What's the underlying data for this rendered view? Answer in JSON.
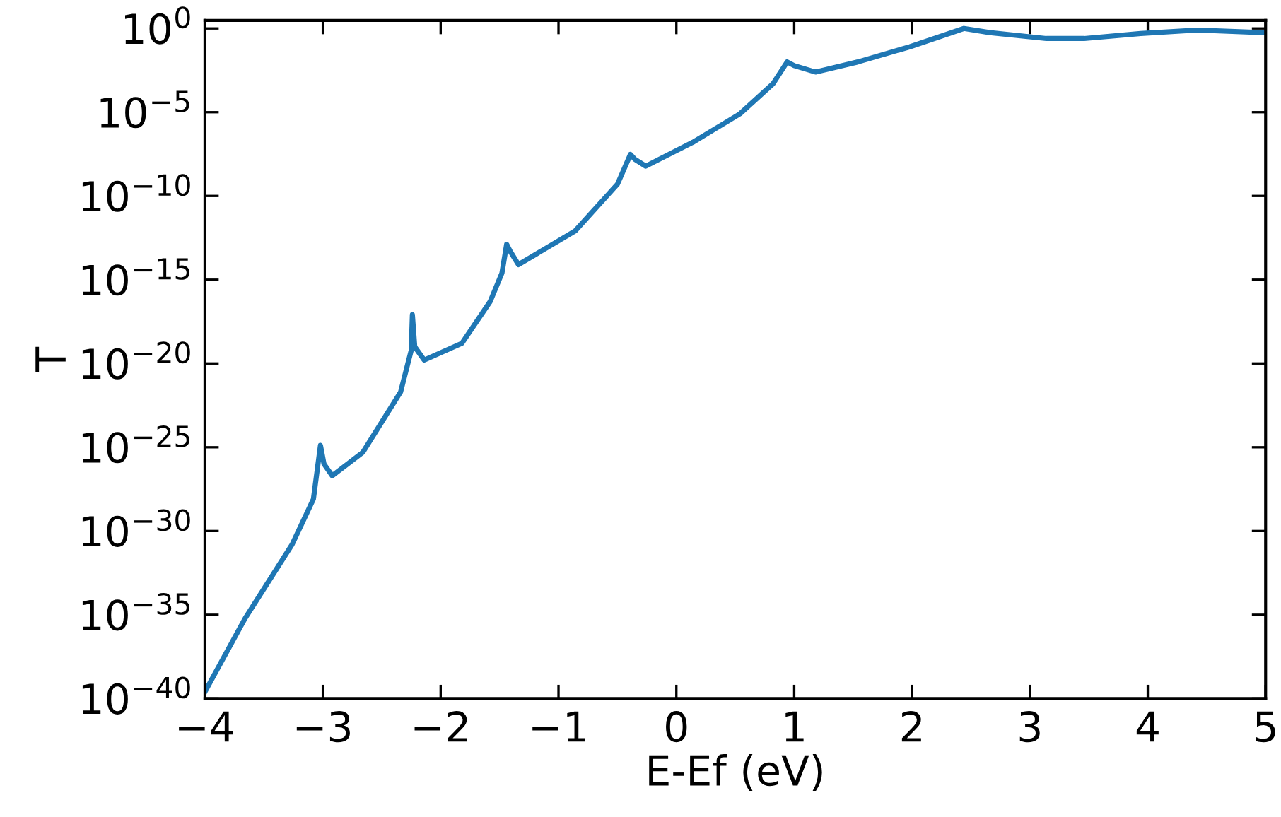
{
  "chart_data": {
    "type": "line",
    "xlabel": "E-Ef (eV)",
    "ylabel": "T",
    "log": "y",
    "grid": false,
    "marker": "none",
    "line_style": "solid",
    "xlim": [
      -4,
      5
    ],
    "xticks": [
      {
        "value": -4,
        "label": "−4"
      },
      {
        "value": -3,
        "label": "−3"
      },
      {
        "value": -2,
        "label": "−2"
      },
      {
        "value": -1,
        "label": "−1"
      },
      0,
      1,
      2,
      3,
      4,
      5
    ],
    "ylim": [
      1e-40,
      3
    ],
    "yticks": [
      {
        "value": 1e-40,
        "label": "10$^{−40}$"
      },
      {
        "value": 1e-35,
        "label": "10$^{−35}$"
      },
      {
        "value": 1e-30,
        "label": "10$^{−30}$"
      },
      {
        "value": 1e-25,
        "label": "10$^{−25}$"
      },
      {
        "value": 1e-20,
        "label": "10$^{−20}$"
      },
      {
        "value": 1e-15,
        "label": "10$^{−15}$"
      },
      {
        "value": 1e-10,
        "label": "10$^{−10}$"
      },
      {
        "value": 1e-05,
        "label": "10$^{−5}$"
      },
      {
        "value": 1,
        "label": "10$^{0}$"
      }
    ],
    "series": [
      {
        "color": "#1f77b4",
        "x": [
          -4,
          -3.66,
          -3.26,
          -3.08,
          -3.02,
          -2.99,
          -2.92,
          -2.66,
          -2.34,
          -2.25,
          -2.24,
          -2.22,
          -2.14,
          -1.82,
          -1.58,
          -1.48,
          -1.44,
          -1.41,
          -1.34,
          -0.86,
          -0.5,
          -0.39,
          -0.35,
          -0.26,
          0.14,
          0.54,
          0.82,
          0.94,
          1.0,
          1.18,
          1.54,
          1.98,
          2.44,
          2.66,
          3.14,
          3.46,
          3.94,
          4.42,
          4.98
        ],
        "values": [
          2.5e-40,
          6e-36,
          1.6e-31,
          8e-29,
          1.3e-25,
          1e-26,
          2e-27,
          5e-26,
          2e-22,
          6e-20,
          8e-18,
          1e-19,
          1.6e-20,
          1.6e-19,
          5e-17,
          2.5e-15,
          1.3e-13,
          5e-14,
          8e-15,
          8e-13,
          5e-10,
          3e-08,
          1.5e-08,
          6e-09,
          1.6e-07,
          8e-06,
          0.0005,
          0.01,
          0.006,
          0.0025,
          0.01,
          0.08,
          1,
          0.56,
          0.25,
          0.25,
          0.5,
          0.8,
          0.56
        ]
      }
    ]
  }
}
